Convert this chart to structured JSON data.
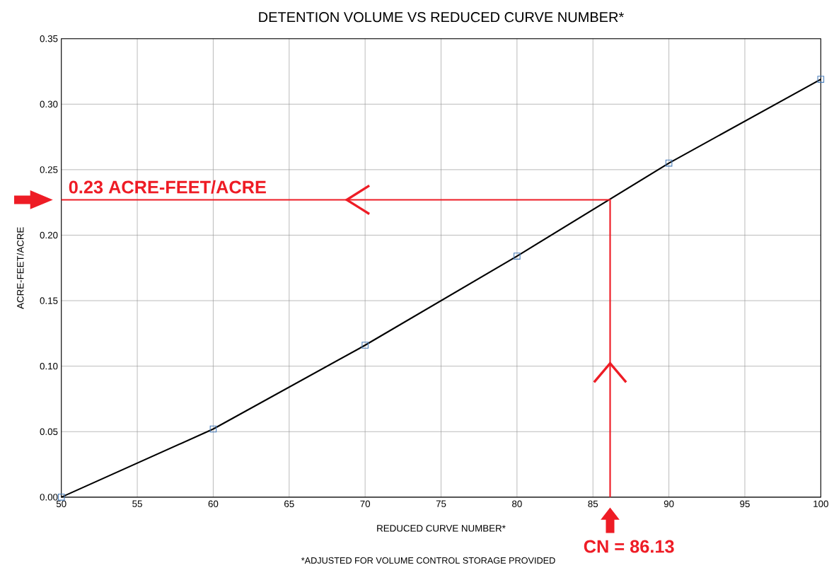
{
  "chart_data": {
    "type": "line",
    "title": "DETENTION VOLUME VS REDUCED CURVE NUMBER*",
    "xlabel": "REDUCED CURVE NUMBER*",
    "ylabel": "ACRE-FEET/ACRE",
    "series": [
      {
        "color": "#000000",
        "x": [
          50,
          60,
          70,
          80,
          90,
          100
        ],
        "values": [
          0.0,
          0.052,
          0.116,
          0.184,
          0.255,
          0.319
        ]
      },
      {
        "type": "scatter",
        "marker": "square",
        "color": "#4a7ebb",
        "x": [
          50,
          60,
          70,
          80,
          90,
          100
        ],
        "values": [
          0.0,
          0.052,
          0.116,
          0.184,
          0.255,
          0.319
        ]
      },
      {
        "color": "#ee1c25",
        "x": [
          50,
          86.13,
          86.13
        ],
        "values": [
          0.227,
          0.227,
          0.0
        ]
      }
    ],
    "xlim": [
      50,
      100
    ],
    "xticks": [
      50,
      55,
      60,
      65,
      70,
      75,
      80,
      85,
      90,
      95,
      100
    ],
    "ylim": [
      0,
      0.35
    ],
    "yticks": [
      {
        "value": 0,
        "label": "0.00"
      },
      {
        "value": 0.05,
        "label": "0.05"
      },
      {
        "value": 0.1,
        "label": "0.10"
      },
      {
        "value": 0.15,
        "label": "0.15"
      },
      {
        "value": 0.2,
        "label": "0.20"
      },
      {
        "value": 0.25,
        "label": "0.25"
      },
      {
        "value": 0.3,
        "label": "0.30"
      },
      {
        "value": 0.35,
        "label": "0.35"
      }
    ],
    "grid": true,
    "annotations": [
      "0.23 ACRE-FEET/ACRE",
      "CN = 86.13",
      "*ADJUSTED FOR VOLUME CONTROL STORAGE PROVIDED"
    ]
  }
}
